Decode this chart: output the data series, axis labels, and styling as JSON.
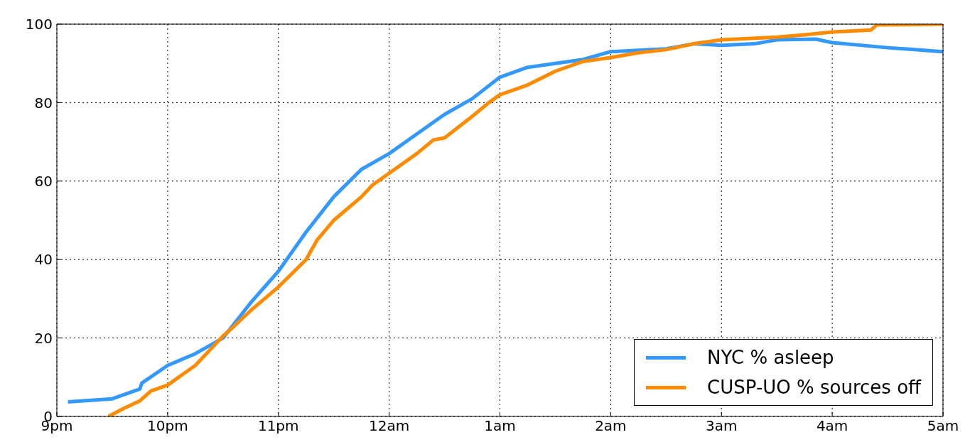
{
  "chart_data": {
    "type": "line",
    "xlim": [
      "--01-01T21:00",
      "--01-02T05:00"
    ],
    "xticks": [
      {
        "value": "--01-01T21:00",
        "label": "9pm"
      },
      {
        "value": "--01-01T22:00",
        "label": "10pm"
      },
      {
        "value": "--01-01T23:00",
        "label": "11pm"
      },
      {
        "value": "--01-02T00:00",
        "label": "12am"
      },
      {
        "value": "--01-02T01:00",
        "label": "1am"
      },
      {
        "value": "--01-02T02:00",
        "label": "2am"
      },
      {
        "value": "--01-02T03:00",
        "label": "3am"
      },
      {
        "value": "--01-02T04:00",
        "label": "4am"
      },
      {
        "value": "--01-02T05:00",
        "label": "5am"
      }
    ],
    "ylim": [
      0,
      100
    ],
    "yticks": [
      0,
      20,
      40,
      60,
      80,
      100
    ],
    "grid": true,
    "legend": "bottom right",
    "series": [
      {
        "name": "NYC % asleep",
        "color": "#3399ff",
        "x": [
          "--01-01T21:06",
          "--01-01T21:30",
          "--01-01T21:45",
          "--01-01T21:46",
          "--01-01T22:00",
          "--01-01T22:15",
          "--01-01T22:30",
          "--01-01T22:45",
          "--01-01T23:00",
          "--01-01T23:15",
          "--01-01T23:30",
          "--01-01T23:45",
          "--01-02T00:00",
          "--01-02T00:15",
          "--01-02T00:30",
          "--01-02T00:45",
          "--01-02T01:00",
          "--01-02T01:15",
          "--01-02T01:30",
          "--01-02T01:45",
          "--01-02T02:00",
          "--01-02T02:30",
          "--01-02T02:45",
          "--01-02T03:00",
          "--01-02T03:18",
          "--01-02T03:30",
          "--01-02T03:51",
          "--01-02T04:00",
          "--01-02T04:30",
          "--01-02T05:00"
        ],
        "values": [
          3.7,
          4.5,
          7,
          8.5,
          13,
          16,
          20,
          29,
          37,
          47,
          56,
          63,
          67,
          72,
          77,
          81,
          86.5,
          89,
          90,
          91,
          93,
          93.7,
          95,
          94.6,
          95,
          96,
          96.2,
          95.3,
          94,
          93
        ]
      },
      {
        "name": "CUSP-UO % sources off",
        "color": "#ff8c00",
        "x": [
          "--01-01T21:28",
          "--01-01T21:36",
          "--01-01T21:45",
          "--01-01T21:51",
          "--01-01T22:00",
          "--01-01T22:15",
          "--01-01T22:30",
          "--01-01T22:36",
          "--01-01T22:45",
          "--01-01T23:00",
          "--01-01T23:15",
          "--01-01T23:21",
          "--01-01T23:30",
          "--01-01T23:45",
          "--01-01T23:51",
          "--01-02T00:00",
          "--01-02T00:15",
          "--01-02T00:24",
          "--01-02T00:30",
          "--01-02T00:45",
          "--01-02T00:54",
          "--01-02T01:00",
          "--01-02T01:15",
          "--01-02T01:30",
          "--01-02T01:45",
          "--01-02T02:00",
          "--01-02T02:15",
          "--01-02T02:30",
          "--01-02T02:45",
          "--01-02T03:00",
          "--01-02T03:30",
          "--01-02T03:45",
          "--01-02T04:00",
          "--01-02T04:21",
          "--01-02T04:24",
          "--01-02T05:00"
        ],
        "values": [
          0,
          2,
          4,
          6.5,
          8,
          13,
          20.5,
          23,
          27,
          33,
          40,
          45,
          50,
          56,
          59,
          62,
          67,
          70.5,
          71,
          76.5,
          80,
          82,
          84.5,
          88,
          90.5,
          91.5,
          92.7,
          93.5,
          95,
          96,
          96.7,
          97.3,
          98,
          98.5,
          99.8,
          100
        ]
      }
    ]
  }
}
